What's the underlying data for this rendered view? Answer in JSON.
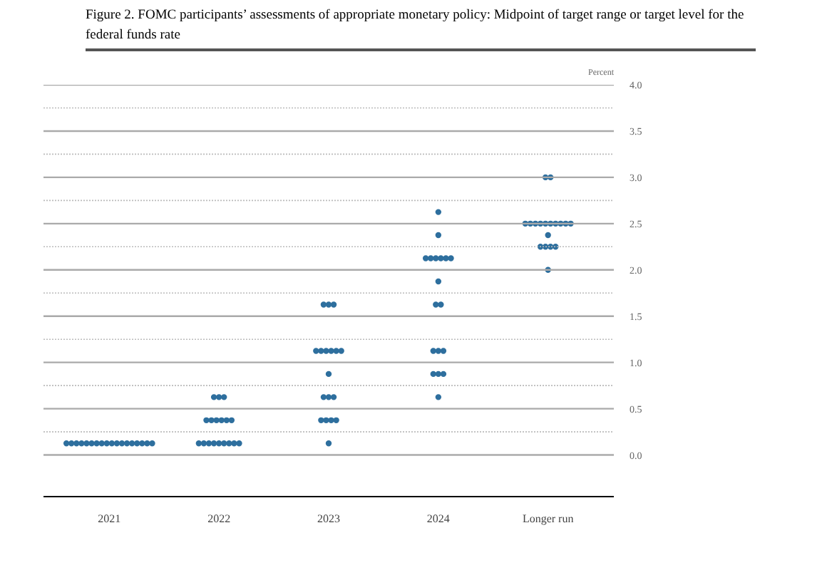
{
  "chart_data": {
    "type": "scatter",
    "title": "Figure 2.  FOMC participants’ assessments of appropriate monetary policy:  Midpoint of target range or target level for the federal funds rate",
    "ylabel": "Percent",
    "categories": [
      "2021",
      "2022",
      "2023",
      "2024",
      "Longer run"
    ],
    "series": [
      {
        "color": "#2e6f9e",
        "values": [
          0.125,
          0.125,
          0.125,
          0.625,
          2.0
        ]
      },
      {
        "color": "#2e6f9e",
        "values": [
          0.125,
          0.125,
          0.375,
          0.875,
          2.25
        ]
      },
      {
        "color": "#2e6f9e",
        "values": [
          0.125,
          0.125,
          0.375,
          0.875,
          2.25
        ]
      },
      {
        "color": "#2e6f9e",
        "values": [
          0.125,
          0.125,
          0.375,
          0.875,
          2.25
        ]
      },
      {
        "color": "#2e6f9e",
        "values": [
          0.125,
          0.125,
          0.375,
          1.125,
          2.25
        ]
      },
      {
        "color": "#2e6f9e",
        "values": [
          0.125,
          0.125,
          0.625,
          1.125,
          2.375
        ]
      },
      {
        "color": "#2e6f9e",
        "values": [
          0.125,
          0.125,
          0.625,
          1.125,
          2.5
        ]
      },
      {
        "color": "#2e6f9e",
        "values": [
          0.125,
          0.125,
          0.625,
          1.625,
          2.5
        ]
      },
      {
        "color": "#2e6f9e",
        "values": [
          0.125,
          0.125,
          0.875,
          1.625,
          2.5
        ]
      },
      {
        "color": "#2e6f9e",
        "values": [
          0.125,
          0.375,
          1.125,
          1.875,
          2.5
        ]
      },
      {
        "color": "#2e6f9e",
        "values": [
          0.125,
          0.375,
          1.125,
          2.125,
          2.5
        ]
      },
      {
        "color": "#2e6f9e",
        "values": [
          0.125,
          0.375,
          1.125,
          2.125,
          2.5
        ]
      },
      {
        "color": "#2e6f9e",
        "values": [
          0.125,
          0.375,
          1.125,
          2.125,
          2.5
        ]
      },
      {
        "color": "#2e6f9e",
        "values": [
          0.125,
          0.375,
          1.125,
          2.125,
          2.5
        ]
      },
      {
        "color": "#2e6f9e",
        "values": [
          0.125,
          0.375,
          1.125,
          2.125,
          2.5
        ]
      },
      {
        "color": "#2e6f9e",
        "values": [
          0.125,
          0.625,
          1.625,
          2.125,
          2.5
        ]
      },
      {
        "color": "#2e6f9e",
        "values": [
          0.125,
          0.625,
          1.625,
          2.375,
          3.0
        ]
      },
      {
        "color": "#2e6f9e",
        "values": [
          0.125,
          0.625,
          1.625,
          2.625,
          3.0
        ]
      }
    ],
    "ylim": [
      -0.45,
      4.0
    ],
    "yticks": [
      {
        "value": 0,
        "label": "0.0"
      },
      {
        "value": 0.25,
        "label": null
      },
      {
        "value": 0.5,
        "label": "0.5"
      },
      {
        "value": 0.75,
        "label": null
      },
      {
        "value": 1,
        "label": "1.0"
      },
      {
        "value": 1.25,
        "label": null
      },
      {
        "value": 1.5,
        "label": "1.5"
      },
      {
        "value": 1.75,
        "label": null
      },
      {
        "value": 2,
        "label": "2.0"
      },
      {
        "value": 2.25,
        "label": null
      },
      {
        "value": 2.5,
        "label": "2.5"
      },
      {
        "value": 2.75,
        "label": null
      },
      {
        "value": 3,
        "label": "3.0"
      },
      {
        "value": 3.25,
        "label": null
      },
      {
        "value": 3.5,
        "label": "3.5"
      },
      {
        "value": 3.75,
        "label": null
      },
      {
        "value": 4,
        "label": "4.0"
      }
    ],
    "grid": "y",
    "marker": "circle"
  }
}
